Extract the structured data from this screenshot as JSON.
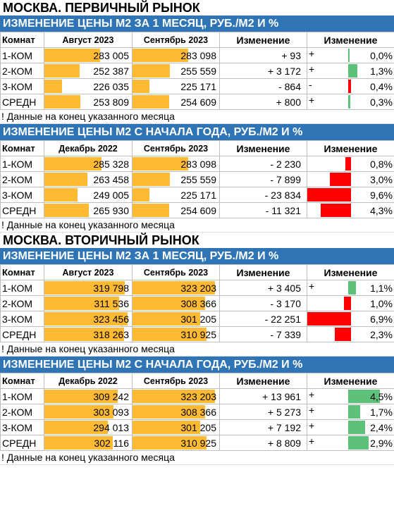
{
  "colors": {
    "band": "#2f75b5",
    "value_bar": "#ffba34",
    "pos_bar": "#5ec17a",
    "neg_bar": "#ff0000"
  },
  "sections": [
    {
      "title": "МОСКВА. ПЕРВИЧНЫЙ РЫНОК",
      "tables": [
        {
          "band": "ИЗМЕНЕНИЕ ЦЕНЫ М2 ЗА 1 МЕСЯЦ, РУБ./М2 И %",
          "headers": [
            "Комнат",
            "Август 2023",
            "Сентябрь 2023",
            "Изменение",
            "Изменение"
          ],
          "note": "! Данные на конец указанного месяца",
          "rows": [
            {
              "room": "1-КОМ",
              "a": "283 005",
              "a_val": 283005,
              "b": "283 098",
              "b_val": 283098,
              "delta": "+ 93",
              "plus": "+",
              "pct": "0,0%",
              "pct_val": 0.0
            },
            {
              "room": "2-КОМ",
              "a": "252 387",
              "a_val": 252387,
              "b": "255 559",
              "b_val": 255559,
              "delta": "+ 3 172",
              "plus": "+",
              "pct": "1,3%",
              "pct_val": 1.3
            },
            {
              "room": "3-КОМ",
              "a": "226 035",
              "a_val": 226035,
              "b": "225 171",
              "b_val": 225171,
              "delta": "- 864",
              "plus": "-",
              "pct": "0,4%",
              "pct_val": -0.4
            },
            {
              "room": "СРЕДН",
              "a": "253 809",
              "a_val": 253809,
              "b": "254 609",
              "b_val": 254609,
              "delta": "+ 800",
              "plus": "+",
              "pct": "0,3%",
              "pct_val": 0.3
            }
          ]
        },
        {
          "band": "ИЗМЕНЕНИЕ ЦЕНЫ М2 С НАЧАЛА ГОДА, РУБ./М2 И %",
          "headers": [
            "Комнат",
            "Декабрь 2022",
            "Сентябрь 2023",
            "Изменение",
            "Изменение"
          ],
          "note": "! Данные на конец указанного месяца",
          "rows": [
            {
              "room": "1-КОМ",
              "a": "285 328",
              "a_val": 285328,
              "b": "283 098",
              "b_val": 283098,
              "delta": "- 2 230",
              "plus": "",
              "pct": "0,8%",
              "pct_val": -0.8
            },
            {
              "room": "2-КОМ",
              "a": "263 458",
              "a_val": 263458,
              "b": "255 559",
              "b_val": 255559,
              "delta": "- 7 899",
              "plus": "",
              "pct": "3,0%",
              "pct_val": -3.0
            },
            {
              "room": "3-КОМ",
              "a": "249 005",
              "a_val": 249005,
              "b": "225 171",
              "b_val": 225171,
              "delta": "- 23 834",
              "plus": "",
              "pct": "9,6%",
              "pct_val": -9.6
            },
            {
              "room": "СРЕДН",
              "a": "265 930",
              "a_val": 265930,
              "b": "254 609",
              "b_val": 254609,
              "delta": "- 11 321",
              "plus": "",
              "pct": "4,3%",
              "pct_val": -4.3
            }
          ]
        }
      ]
    },
    {
      "title": "МОСКВА. ВТОРИЧНЫЙ РЫНОК",
      "tables": [
        {
          "band": "ИЗМЕНЕНИЕ ЦЕНЫ М2 ЗА 1 МЕСЯЦ, РУБ./М2 И %",
          "headers": [
            "Комнат",
            "Август 2023",
            "Сентябрь 2023",
            "Изменение",
            "Изменение"
          ],
          "note": "! Данные на конец указанного месяца",
          "rows": [
            {
              "room": "1-КОМ",
              "a": "319 798",
              "a_val": 319798,
              "b": "323 203",
              "b_val": 323203,
              "delta": "+ 3 405",
              "plus": "+",
              "pct": "1,1%",
              "pct_val": 1.1
            },
            {
              "room": "2-КОМ",
              "a": "311 536",
              "a_val": 311536,
              "b": "308 366",
              "b_val": 308366,
              "delta": "- 3 170",
              "plus": "",
              "pct": "1,0%",
              "pct_val": -1.0
            },
            {
              "room": "3-КОМ",
              "a": "323 456",
              "a_val": 323456,
              "b": "301 205",
              "b_val": 301205,
              "delta": "- 22 251",
              "plus": "",
              "pct": "6,9%",
              "pct_val": -6.9
            },
            {
              "room": "СРЕДН",
              "a": "318 263",
              "a_val": 318263,
              "b": "310 925",
              "b_val": 310925,
              "delta": "- 7 339",
              "plus": "",
              "pct": "2,3%",
              "pct_val": -2.3
            }
          ]
        },
        {
          "band": "ИЗМЕНЕНИЕ ЦЕНЫ М2 С НАЧАЛА ГОДА, РУБ./М2 И %",
          "headers": [
            "Комнат",
            "Декабрь 2022",
            "Сентябрь 2023",
            "Изменение",
            "Изменение"
          ],
          "note": "! Данные на конец указанного месяца",
          "rows": [
            {
              "room": "1-КОМ",
              "a": "309 242",
              "a_val": 309242,
              "b": "323 203",
              "b_val": 323203,
              "delta": "+ 13 961",
              "plus": "+",
              "pct": "4,5%",
              "pct_val": 4.5
            },
            {
              "room": "2-КОМ",
              "a": "303 093",
              "a_val": 303093,
              "b": "308 366",
              "b_val": 308366,
              "delta": "+ 5 273",
              "plus": "+",
              "pct": "1,7%",
              "pct_val": 1.7
            },
            {
              "room": "3-КОМ",
              "a": "294 013",
              "a_val": 294013,
              "b": "301 205",
              "b_val": 301205,
              "delta": "+ 7 192",
              "plus": "+",
              "pct": "2,4%",
              "pct_val": 2.4
            },
            {
              "room": "СРЕДН",
              "a": "302 116",
              "a_val": 302116,
              "b": "310 925",
              "b_val": 310925,
              "delta": "+ 8 809",
              "plus": "+",
              "pct": "2,9%",
              "pct_val": 2.9
            }
          ]
        }
      ]
    }
  ]
}
